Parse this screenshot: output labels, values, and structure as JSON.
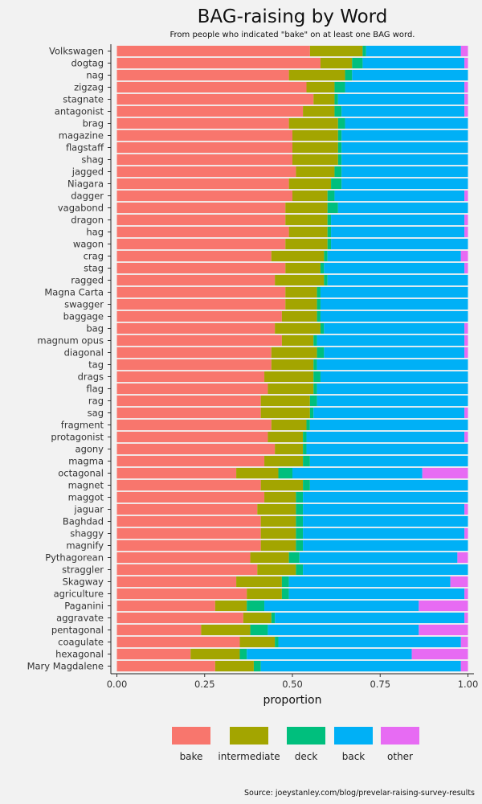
{
  "chart_data": {
    "type": "bar",
    "orientation": "horizontal",
    "stacked": true,
    "title": "BAG-raising by Word",
    "subtitle": "From people who indicated \"bake\" on at least one BAG word.",
    "xlabel": "proportion",
    "ylabel": "",
    "xlim": [
      0,
      1
    ],
    "xticks": [
      "0.00",
      "0.25",
      "0.50",
      "0.75",
      "1.00"
    ],
    "legend_position": "bottom",
    "source": "Source: joeystanley.com/blog/prevelar-raising-survey-results",
    "series": [
      {
        "name": "bake",
        "color": "#F8766D"
      },
      {
        "name": "intermediate",
        "color": "#A3A500"
      },
      {
        "name": "deck",
        "color": "#00BF7D"
      },
      {
        "name": "back",
        "color": "#00B0F6"
      },
      {
        "name": "other",
        "color": "#E76BF3"
      }
    ],
    "categories": [
      "Volkswagen",
      "dogtag",
      "nag",
      "zigzag",
      "stagnate",
      "antagonist",
      "brag",
      "magazine",
      "flagstaff",
      "shag",
      "jagged",
      "Niagara",
      "dagger",
      "vagabond",
      "dragon",
      "hag",
      "wagon",
      "crag",
      "stag",
      "ragged",
      "Magna Carta",
      "swagger",
      "baggage",
      "bag",
      "magnum opus",
      "diagonal",
      "tag",
      "drags",
      "flag",
      "rag",
      "sag",
      "fragment",
      "protagonist",
      "agony",
      "magma",
      "octagonal",
      "magnet",
      "maggot",
      "jaguar",
      "Baghdad",
      "shaggy",
      "magnify",
      "Pythagorean",
      "straggler",
      "Skagway",
      "agriculture",
      "Paganini",
      "aggravate",
      "pentagonal",
      "coagulate",
      "hexagonal",
      "Mary Magdalene"
    ],
    "values": [
      [
        0.55,
        0.15,
        0.01,
        0.27,
        0.02
      ],
      [
        0.58,
        0.09,
        0.03,
        0.29,
        0.01
      ],
      [
        0.49,
        0.16,
        0.02,
        0.33,
        0.0
      ],
      [
        0.54,
        0.08,
        0.03,
        0.34,
        0.01
      ],
      [
        0.56,
        0.06,
        0.01,
        0.36,
        0.01
      ],
      [
        0.53,
        0.09,
        0.02,
        0.35,
        0.01
      ],
      [
        0.49,
        0.14,
        0.02,
        0.35,
        0.0
      ],
      [
        0.5,
        0.13,
        0.01,
        0.36,
        0.0
      ],
      [
        0.5,
        0.13,
        0.01,
        0.36,
        0.0
      ],
      [
        0.5,
        0.13,
        0.01,
        0.36,
        0.0
      ],
      [
        0.51,
        0.11,
        0.02,
        0.36,
        0.0
      ],
      [
        0.49,
        0.12,
        0.03,
        0.36,
        0.0
      ],
      [
        0.5,
        0.1,
        0.02,
        0.37,
        0.01
      ],
      [
        0.48,
        0.12,
        0.03,
        0.37,
        0.0
      ],
      [
        0.48,
        0.12,
        0.01,
        0.38,
        0.01
      ],
      [
        0.49,
        0.11,
        0.01,
        0.38,
        0.01
      ],
      [
        0.48,
        0.12,
        0.01,
        0.39,
        0.0
      ],
      [
        0.44,
        0.15,
        0.01,
        0.38,
        0.02
      ],
      [
        0.48,
        0.1,
        0.01,
        0.4,
        0.01
      ],
      [
        0.45,
        0.14,
        0.01,
        0.4,
        0.0
      ],
      [
        0.48,
        0.09,
        0.01,
        0.42,
        0.0
      ],
      [
        0.48,
        0.09,
        0.01,
        0.42,
        0.0
      ],
      [
        0.47,
        0.1,
        0.01,
        0.42,
        0.0
      ],
      [
        0.45,
        0.13,
        0.01,
        0.4,
        0.01
      ],
      [
        0.47,
        0.09,
        0.01,
        0.42,
        0.01
      ],
      [
        0.44,
        0.13,
        0.02,
        0.4,
        0.01
      ],
      [
        0.44,
        0.12,
        0.01,
        0.43,
        0.0
      ],
      [
        0.42,
        0.14,
        0.02,
        0.42,
        0.0
      ],
      [
        0.43,
        0.13,
        0.01,
        0.43,
        0.0
      ],
      [
        0.41,
        0.14,
        0.02,
        0.43,
        0.0
      ],
      [
        0.41,
        0.14,
        0.01,
        0.43,
        0.01
      ],
      [
        0.44,
        0.1,
        0.01,
        0.45,
        0.0
      ],
      [
        0.43,
        0.1,
        0.01,
        0.45,
        0.01
      ],
      [
        0.45,
        0.08,
        0.01,
        0.46,
        0.0
      ],
      [
        0.42,
        0.11,
        0.02,
        0.45,
        0.0
      ],
      [
        0.34,
        0.12,
        0.04,
        0.37,
        0.13
      ],
      [
        0.41,
        0.12,
        0.02,
        0.45,
        0.0
      ],
      [
        0.42,
        0.09,
        0.02,
        0.47,
        0.0
      ],
      [
        0.4,
        0.11,
        0.02,
        0.46,
        0.01
      ],
      [
        0.41,
        0.1,
        0.02,
        0.47,
        0.0
      ],
      [
        0.41,
        0.1,
        0.02,
        0.46,
        0.01
      ],
      [
        0.41,
        0.1,
        0.02,
        0.47,
        0.0
      ],
      [
        0.38,
        0.11,
        0.03,
        0.45,
        0.03
      ],
      [
        0.4,
        0.11,
        0.02,
        0.47,
        0.0
      ],
      [
        0.34,
        0.13,
        0.02,
        0.46,
        0.05
      ],
      [
        0.37,
        0.1,
        0.02,
        0.5,
        0.01
      ],
      [
        0.28,
        0.09,
        0.05,
        0.44,
        0.14
      ],
      [
        0.36,
        0.08,
        0.01,
        0.54,
        0.01
      ],
      [
        0.24,
        0.14,
        0.05,
        0.43,
        0.14
      ],
      [
        0.35,
        0.1,
        0.01,
        0.52,
        0.02
      ],
      [
        0.21,
        0.14,
        0.02,
        0.47,
        0.16
      ],
      [
        0.28,
        0.11,
        0.02,
        0.57,
        0.02
      ]
    ]
  }
}
